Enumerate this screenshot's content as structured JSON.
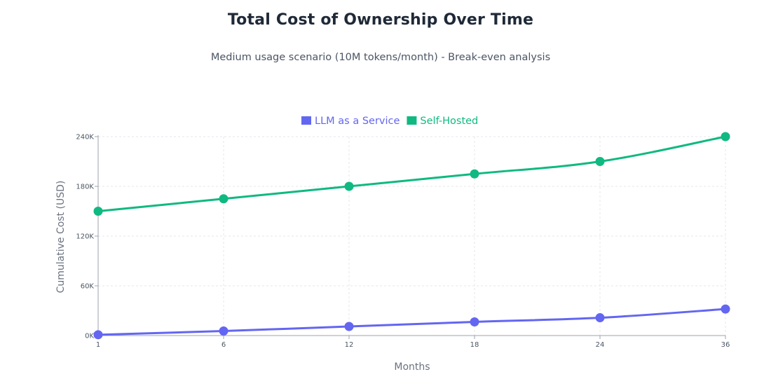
{
  "chart_data": {
    "type": "line",
    "title": "Total Cost of Ownership Over Time",
    "subtitle": "Medium usage scenario (10M tokens/month) - Break-even analysis",
    "xlabel": "Months",
    "ylabel": "Cumulative Cost (USD)",
    "categories": [
      "1",
      "6",
      "12",
      "18",
      "24",
      "36"
    ],
    "ylim": [
      0,
      240000
    ],
    "y_ticks": [
      {
        "value": 0,
        "label": "0K"
      },
      {
        "value": 60000,
        "label": "60K"
      },
      {
        "value": 120000,
        "label": "120K"
      },
      {
        "value": 180000,
        "label": "180K"
      },
      {
        "value": 240000,
        "label": "240K"
      }
    ],
    "grid": true,
    "legend_position": "top-center",
    "series": [
      {
        "name": "LLM as a Service",
        "color": "#6366f1",
        "values": [
          1000,
          5500,
          11000,
          16500,
          21500,
          32000
        ]
      },
      {
        "name": "Self-Hosted",
        "color": "#10b981",
        "values": [
          150000,
          165000,
          180000,
          195000,
          210000,
          240000
        ]
      }
    ]
  }
}
